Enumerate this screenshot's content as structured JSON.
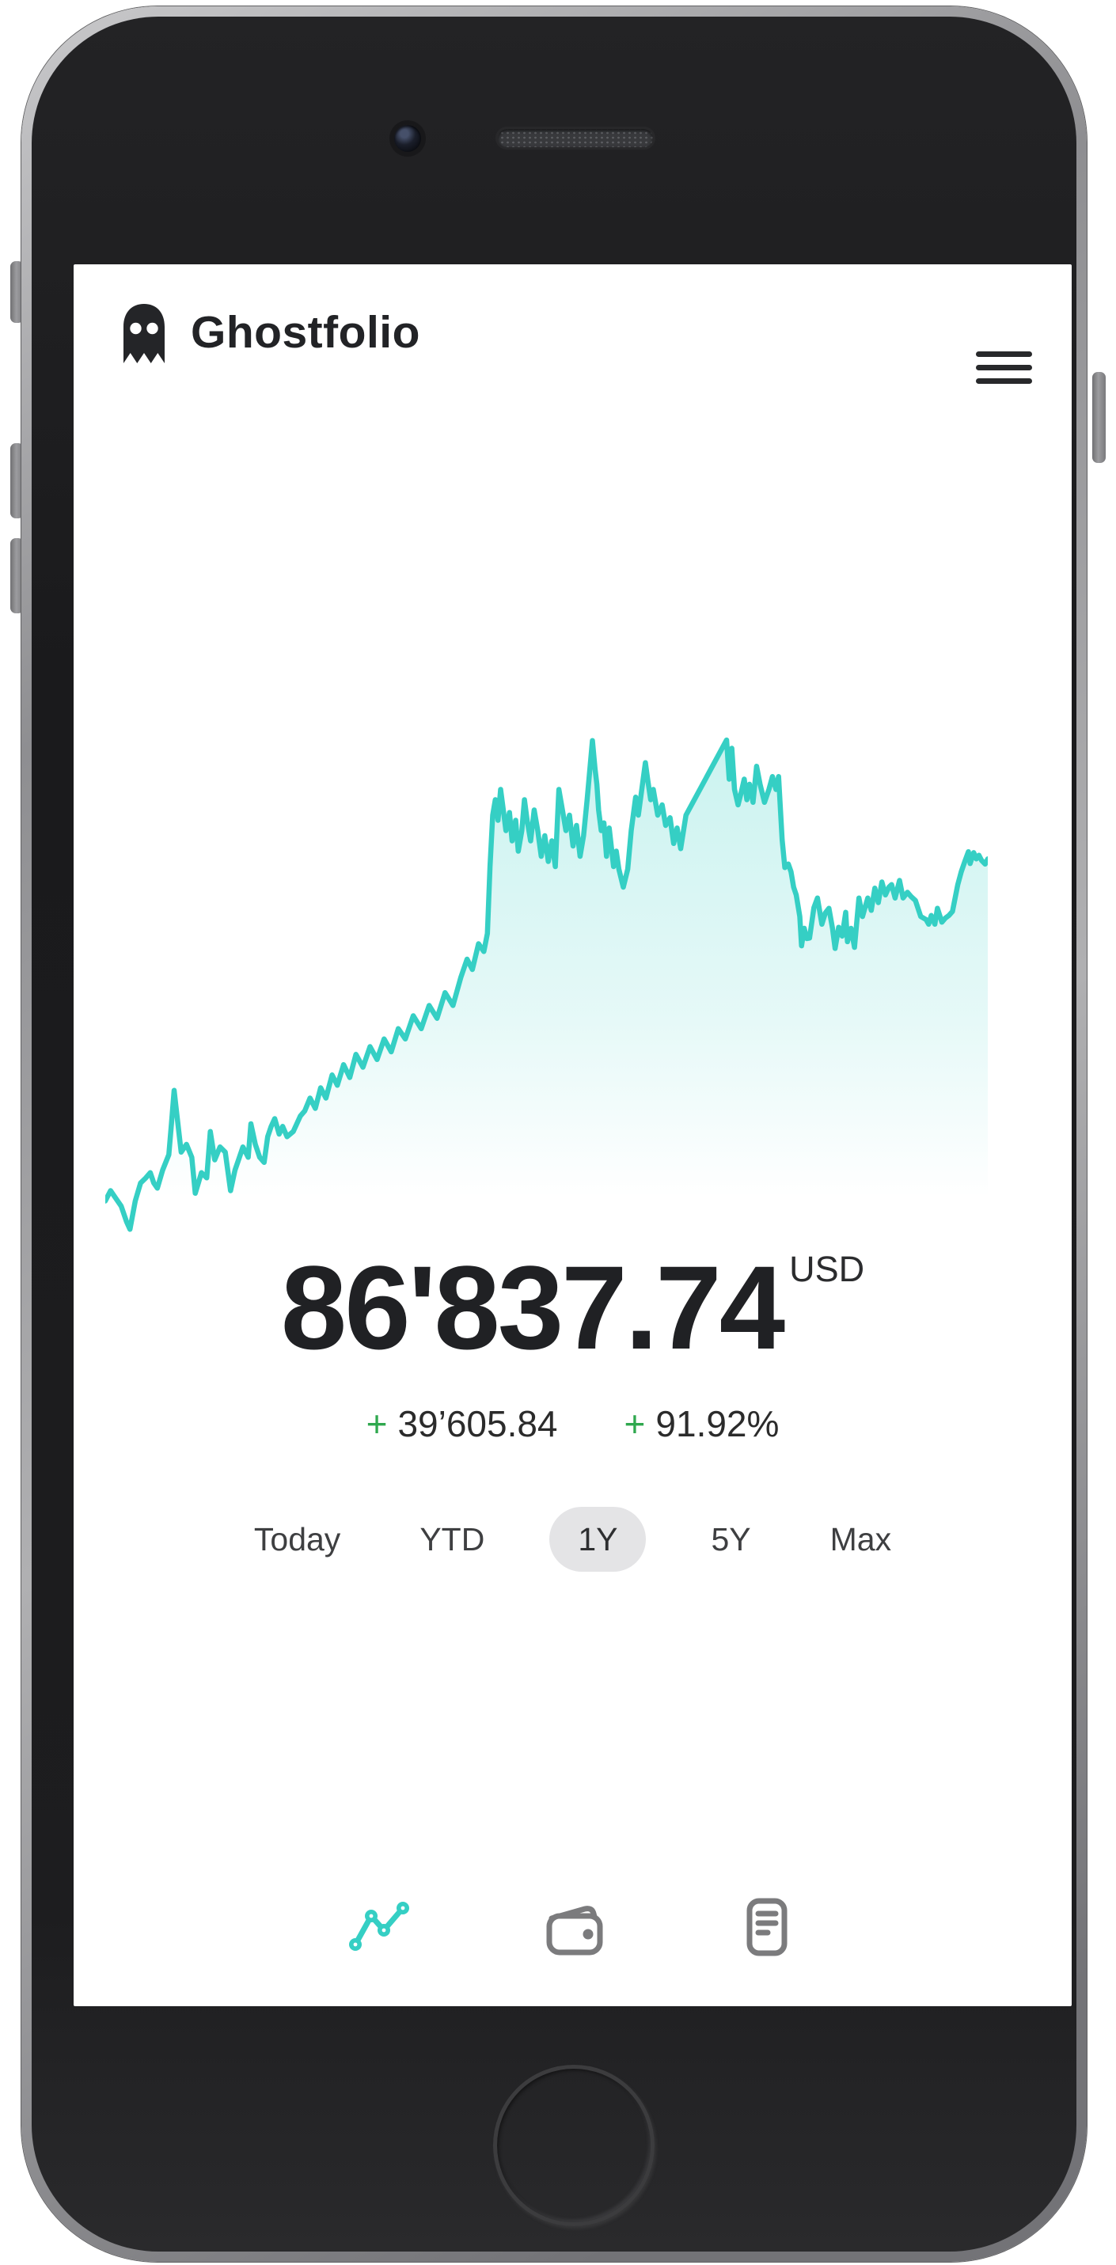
{
  "device": {
    "type": "smartphone-mockup",
    "hardware": [
      "camera",
      "speaker",
      "mute-switch",
      "volume-buttons",
      "power-button",
      "home-button"
    ]
  },
  "header": {
    "app_name": "Ghostfolio",
    "logo_icon": "ghost-icon",
    "menu_icon": "hamburger-menu-icon"
  },
  "summary": {
    "value": "86'837.74",
    "currency": "USD",
    "change_absolute_sign": "+",
    "change_absolute": "39’605.84",
    "change_percent_sign": "+",
    "change_percent": "91.92%",
    "positive_color": "#2fa84e",
    "value_color": "#202124"
  },
  "periods": {
    "items": [
      {
        "label": "Today",
        "selected": false
      },
      {
        "label": "YTD",
        "selected": false
      },
      {
        "label": "1Y",
        "selected": true
      },
      {
        "label": "5Y",
        "selected": false
      },
      {
        "label": "Max",
        "selected": false
      }
    ],
    "selected_pill_color": "#e4e4e6"
  },
  "bottom_nav": {
    "items": [
      {
        "icon": "performance-chart-icon",
        "active": true,
        "color": "#35cfc4"
      },
      {
        "icon": "wallet-icon",
        "active": false,
        "color": "#7b7b7d"
      },
      {
        "icon": "reports-icon",
        "active": false,
        "color": "#7b7b7d"
      }
    ]
  },
  "chart_data": {
    "type": "area",
    "title": "Portfolio performance",
    "selected_range": "1Y",
    "end_value": "86'837.74",
    "currency": "USD",
    "axes_visible": false,
    "grid": false,
    "legend": false,
    "line_color": "#35cfc4",
    "fill_color_top": "rgba(53,207,196,0.26)",
    "fill_color_bottom": "rgba(53,207,196,0)",
    "note": "points are [x_percent_of_width, y_percent_from_top]; no axis labels are displayed in the UI",
    "points": [
      [
        0,
        93
      ],
      [
        0.6,
        91
      ],
      [
        1.2,
        92.5
      ],
      [
        1.8,
        94
      ],
      [
        2.4,
        97
      ],
      [
        2.8,
        98.5
      ],
      [
        3.4,
        93
      ],
      [
        4,
        89.5
      ],
      [
        4.6,
        88.5
      ],
      [
        5.1,
        87.5
      ],
      [
        5.5,
        89.5
      ],
      [
        5.9,
        90.5
      ],
      [
        6.5,
        87
      ],
      [
        7.2,
        84
      ],
      [
        7.5,
        78
      ],
      [
        7.8,
        71.5
      ],
      [
        8.1,
        76
      ],
      [
        8.6,
        83.5
      ],
      [
        9.2,
        82
      ],
      [
        9.8,
        84.5
      ],
      [
        10.2,
        91.5
      ],
      [
        10.9,
        87.5
      ],
      [
        11.5,
        88.5
      ],
      [
        11.9,
        79.5
      ],
      [
        12.4,
        85
      ],
      [
        13,
        82.5
      ],
      [
        13.6,
        83.5
      ],
      [
        14.2,
        91
      ],
      [
        14.7,
        87
      ],
      [
        15.1,
        85
      ],
      [
        15.6,
        82.5
      ],
      [
        16.2,
        84.5
      ],
      [
        16.5,
        78
      ],
      [
        17,
        82
      ],
      [
        17.5,
        84.5
      ],
      [
        18,
        85.5
      ],
      [
        18.4,
        80.5
      ],
      [
        18.8,
        78.5
      ],
      [
        19.2,
        77
      ],
      [
        19.7,
        80
      ],
      [
        20.1,
        78.5
      ],
      [
        20.6,
        80.5
      ],
      [
        21.3,
        79.5
      ],
      [
        22.1,
        76.5
      ],
      [
        22.6,
        75.5
      ],
      [
        23.2,
        73
      ],
      [
        23.8,
        75
      ],
      [
        24.4,
        71
      ],
      [
        25,
        73
      ],
      [
        25.7,
        68.5
      ],
      [
        26.3,
        70.5
      ],
      [
        27,
        66.5
      ],
      [
        27.7,
        69
      ],
      [
        28.4,
        64.5
      ],
      [
        29.2,
        67
      ],
      [
        30,
        63
      ],
      [
        30.8,
        65.5
      ],
      [
        31.6,
        61.5
      ],
      [
        32.4,
        64
      ],
      [
        33.2,
        59.5
      ],
      [
        34,
        61.5
      ],
      [
        34.9,
        57
      ],
      [
        35.8,
        59.5
      ],
      [
        36.7,
        55
      ],
      [
        37.6,
        57.5
      ],
      [
        38.5,
        52.5
      ],
      [
        39.4,
        55
      ],
      [
        40.3,
        49.5
      ],
      [
        41,
        46
      ],
      [
        41.6,
        48
      ],
      [
        42.3,
        43
      ],
      [
        42.9,
        44.5
      ],
      [
        43.3,
        41
      ],
      [
        43.6,
        28
      ],
      [
        43.9,
        18
      ],
      [
        44.2,
        15
      ],
      [
        44.5,
        19
      ],
      [
        44.8,
        13
      ],
      [
        45.1,
        17
      ],
      [
        45.4,
        21
      ],
      [
        45.8,
        17.5
      ],
      [
        46.1,
        23
      ],
      [
        46.5,
        19
      ],
      [
        46.8,
        25
      ],
      [
        47.2,
        21
      ],
      [
        47.5,
        15
      ],
      [
        47.8,
        19
      ],
      [
        48.2,
        23
      ],
      [
        48.6,
        17
      ],
      [
        49,
        21
      ],
      [
        49.4,
        26
      ],
      [
        49.8,
        22
      ],
      [
        50.2,
        27
      ],
      [
        50.6,
        23
      ],
      [
        51,
        28
      ],
      [
        51.4,
        13
      ],
      [
        51.8,
        17
      ],
      [
        52.2,
        21
      ],
      [
        52.6,
        18
      ],
      [
        53,
        24
      ],
      [
        53.4,
        20
      ],
      [
        53.8,
        26
      ],
      [
        54.2,
        22
      ],
      [
        54.6,
        15
      ],
      [
        55.2,
        3.5
      ],
      [
        55.5,
        9
      ],
      [
        55.7,
        12
      ],
      [
        55.9,
        17
      ],
      [
        56.2,
        21
      ],
      [
        56.5,
        19.5
      ],
      [
        56.8,
        26
      ],
      [
        57.1,
        20.5
      ],
      [
        57.6,
        28
      ],
      [
        57.9,
        25
      ],
      [
        58.2,
        28.5
      ],
      [
        58.7,
        32
      ],
      [
        59.2,
        28.5
      ],
      [
        59.6,
        21
      ],
      [
        60.1,
        14.5
      ],
      [
        60.4,
        18
      ],
      [
        61.2,
        7.8
      ],
      [
        61.5,
        11.5
      ],
      [
        61.8,
        15
      ],
      [
        62.1,
        13
      ],
      [
        62.6,
        18
      ],
      [
        63.1,
        16
      ],
      [
        63.5,
        20
      ],
      [
        64,
        18.5
      ],
      [
        64.4,
        23.5
      ],
      [
        64.8,
        20.5
      ],
      [
        65.2,
        24.5
      ],
      [
        65.8,
        18
      ],
      [
        70.4,
        3.4
      ],
      [
        70.7,
        11
      ],
      [
        71,
        5
      ],
      [
        71.3,
        13
      ],
      [
        71.7,
        16
      ],
      [
        72,
        14
      ],
      [
        72.4,
        11
      ],
      [
        72.7,
        15
      ],
      [
        73,
        12
      ],
      [
        73.4,
        15.5
      ],
      [
        73.8,
        8.5
      ],
      [
        74.2,
        12
      ],
      [
        74.7,
        15.5
      ],
      [
        75.2,
        13
      ],
      [
        75.6,
        10.5
      ],
      [
        76,
        13
      ],
      [
        76.3,
        10.5
      ],
      [
        76.7,
        22.8
      ],
      [
        77,
        28.2
      ],
      [
        77.4,
        27.5
      ],
      [
        77.7,
        29
      ],
      [
        78,
        32
      ],
      [
        78.3,
        33.5
      ],
      [
        78.7,
        37.7
      ],
      [
        78.9,
        43.4
      ],
      [
        79.2,
        40
      ],
      [
        79.5,
        42
      ],
      [
        79.8,
        41.9
      ],
      [
        80.3,
        36
      ],
      [
        80.7,
        34.1
      ],
      [
        81.2,
        39.2
      ],
      [
        81.6,
        37
      ],
      [
        82,
        36.1
      ],
      [
        82.4,
        40
      ],
      [
        82.7,
        43.9
      ],
      [
        83.1,
        39.8
      ],
      [
        83.5,
        41.5
      ],
      [
        83.9,
        36.9
      ],
      [
        84.1,
        42.6
      ],
      [
        84.5,
        40
      ],
      [
        84.9,
        43.7
      ],
      [
        85.4,
        34.1
      ],
      [
        85.8,
        37.7
      ],
      [
        86.4,
        34.1
      ],
      [
        86.8,
        36.5
      ],
      [
        87.2,
        32.2
      ],
      [
        87.6,
        35
      ],
      [
        88,
        31
      ],
      [
        88.4,
        33.5
      ],
      [
        88.8,
        32
      ],
      [
        89.1,
        31.5
      ],
      [
        89.5,
        34.1
      ],
      [
        90,
        30.7
      ],
      [
        90.4,
        34.1
      ],
      [
        90.9,
        33
      ],
      [
        91.3,
        33.8
      ],
      [
        91.8,
        34.6
      ],
      [
        92.4,
        37.7
      ],
      [
        93,
        38.3
      ],
      [
        93.3,
        39.2
      ],
      [
        93.6,
        37.5
      ],
      [
        94,
        39.2
      ],
      [
        94.3,
        36.1
      ],
      [
        94.8,
        38.8
      ],
      [
        95.2,
        38
      ],
      [
        95.6,
        37.5
      ],
      [
        96,
        36.7
      ],
      [
        96.6,
        31.5
      ],
      [
        97,
        29
      ],
      [
        97.4,
        27
      ],
      [
        97.8,
        25.1
      ],
      [
        98,
        27.4
      ],
      [
        98.4,
        25.3
      ],
      [
        98.7,
        26.5
      ],
      [
        99,
        25.8
      ],
      [
        99.3,
        26.8
      ],
      [
        99.7,
        27.5
      ],
      [
        100,
        26.5
      ]
    ]
  }
}
